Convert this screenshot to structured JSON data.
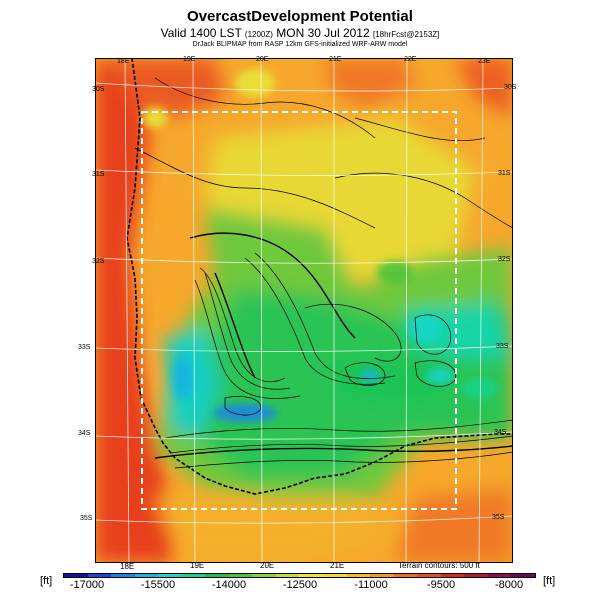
{
  "header": {
    "title": "OvercastDevelopment Potential",
    "subtitle_main": "Valid 1400 LST",
    "subtitle_small1": "(1200Z)",
    "subtitle_date": "MON 30 Jul 2012",
    "subtitle_small2": "[18hrFcst@2153Z]",
    "model_line": "DrJack BLIPMAP from RASP 12km GFS-initialized WRF-ARW model"
  },
  "map": {
    "lon_labels_top": [
      "18E",
      "19E",
      "20E",
      "21E",
      "22E",
      "23E"
    ],
    "lon_labels_bottom": [
      "18E",
      "19E",
      "20E",
      "21E"
    ],
    "lat_labels_right": [
      "30S",
      "31S",
      "32S",
      "33S",
      "34S",
      "35S"
    ],
    "lat_labels_left": [
      "30S",
      "31S",
      "32S",
      "33S",
      "34S",
      "35S"
    ],
    "terrain_note": "Terrain contours: 500 ft"
  },
  "colorbar": {
    "unit_left": "[ft]",
    "unit_right": "[ft]",
    "tick_labels": [
      "-17000",
      "-15500",
      "-14000",
      "-12500",
      "-11000",
      "-9500",
      "-8000"
    ],
    "colors": [
      "#1410a8",
      "#1b46d8",
      "#1a86e6",
      "#17b4e0",
      "#18d6c8",
      "#17d48a",
      "#1cc04a",
      "#4ec43a",
      "#8ad03a",
      "#c0dc38",
      "#e8e438",
      "#fad430",
      "#fab82a",
      "#f89428",
      "#f27024",
      "#e84c22",
      "#d82a22",
      "#b8182a",
      "#8e1050",
      "#6a0a5e"
    ]
  }
}
